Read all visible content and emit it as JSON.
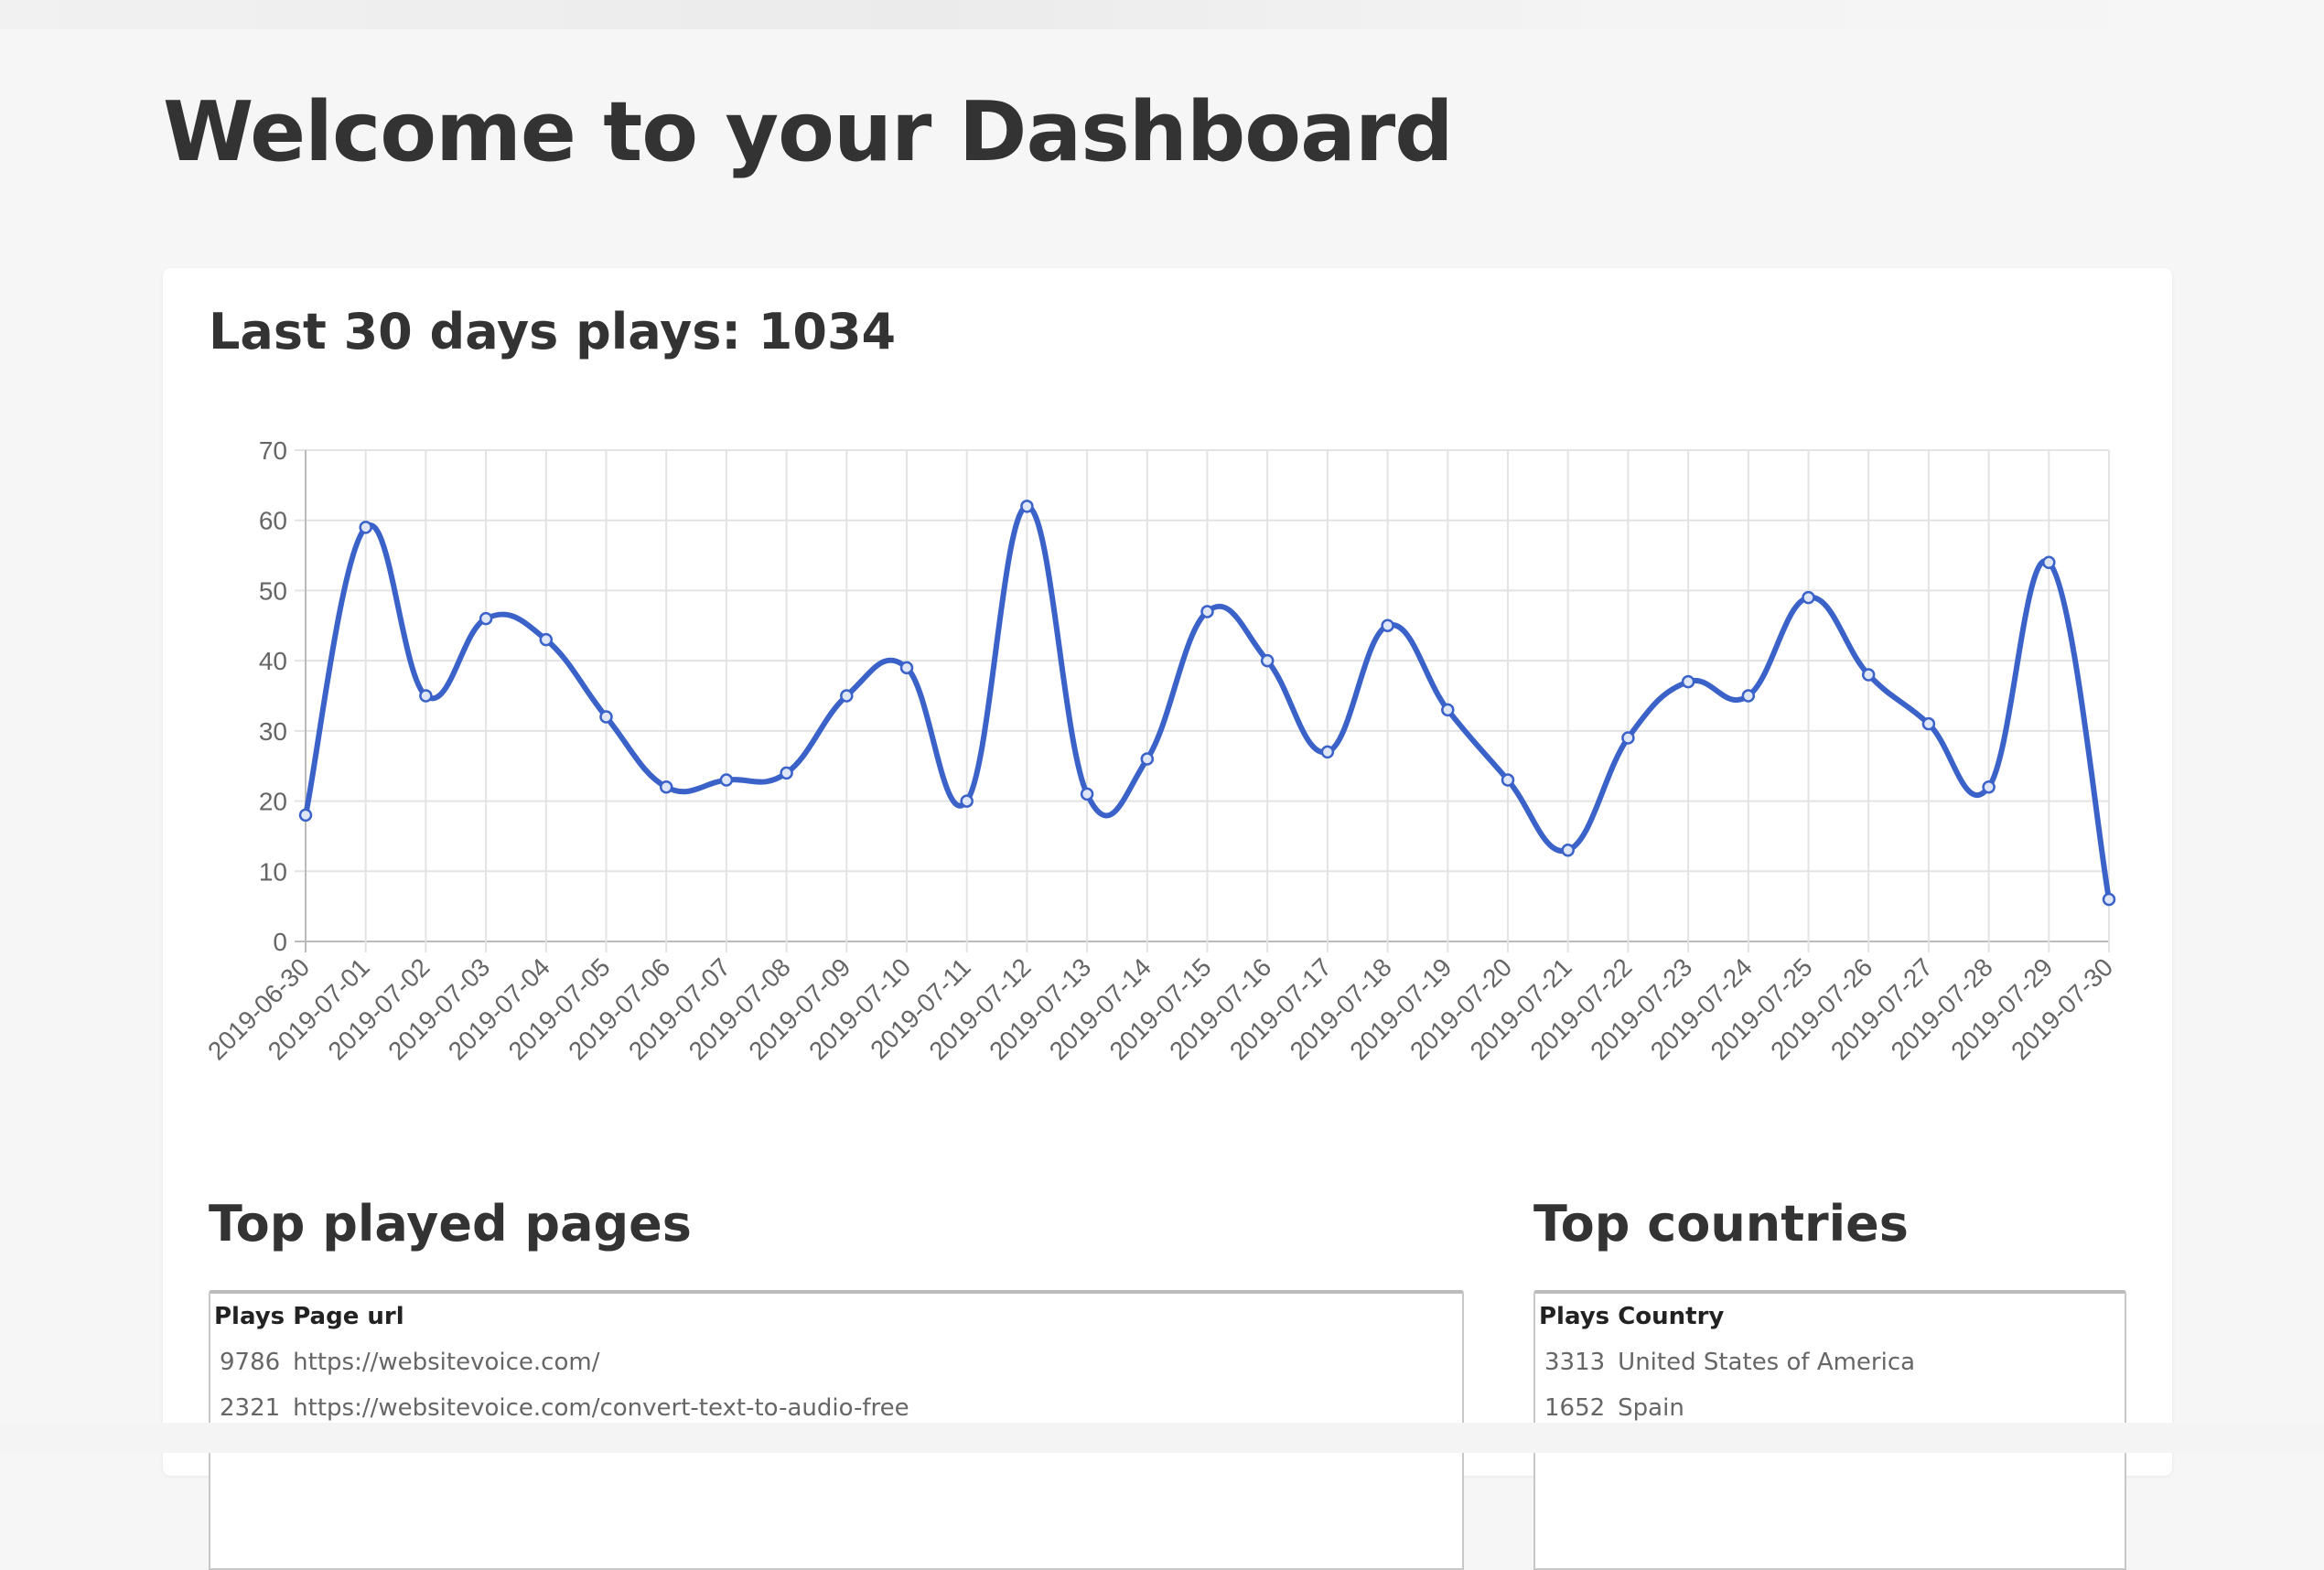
{
  "header": {
    "title": "Welcome to your Dashboard"
  },
  "card": {
    "title": "Last 30 days plays: 1034"
  },
  "chart_data": {
    "type": "line",
    "title": "",
    "xlabel": "",
    "ylabel": "",
    "ylim": [
      0,
      70
    ],
    "yticks": [
      0,
      10,
      20,
      30,
      40,
      50,
      60,
      70
    ],
    "grid": true,
    "color": "#3b62c9",
    "categories": [
      "2019-06-30",
      "2019-07-01",
      "2019-07-02",
      "2019-07-03",
      "2019-07-04",
      "2019-07-05",
      "2019-07-06",
      "2019-07-07",
      "2019-07-08",
      "2019-07-09",
      "2019-07-10",
      "2019-07-11",
      "2019-07-12",
      "2019-07-13",
      "2019-07-14",
      "2019-07-15",
      "2019-07-16",
      "2019-07-17",
      "2019-07-18",
      "2019-07-19",
      "2019-07-20",
      "2019-07-21",
      "2019-07-22",
      "2019-07-23",
      "2019-07-24",
      "2019-07-25",
      "2019-07-26",
      "2019-07-27",
      "2019-07-28",
      "2019-07-29",
      "2019-07-30"
    ],
    "values": [
      18,
      59,
      35,
      46,
      43,
      32,
      22,
      23,
      24,
      35,
      39,
      20,
      62,
      21,
      26,
      47,
      40,
      27,
      45,
      33,
      23,
      13,
      29,
      37,
      35,
      49,
      38,
      31,
      22,
      54,
      6
    ]
  },
  "pages": {
    "title": "Top played pages",
    "headers": "Plays Page url",
    "rows": [
      {
        "plays": "9786",
        "label": "https://websitevoice.com/"
      },
      {
        "plays": "2321",
        "label": "https://websitevoice.com/convert-text-to-audio-free"
      }
    ]
  },
  "countries": {
    "title": "Top countries",
    "headers": "Plays Country",
    "rows": [
      {
        "plays": "3313",
        "label": "United States of America"
      },
      {
        "plays": "1652",
        "label": "Spain"
      }
    ]
  }
}
